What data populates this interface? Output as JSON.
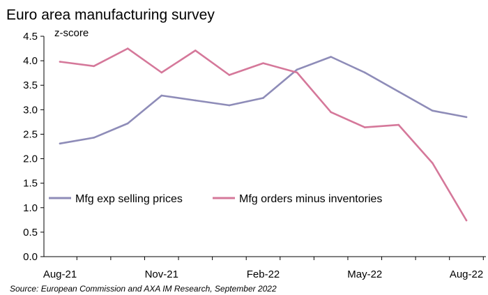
{
  "chart_data": {
    "type": "line",
    "title": "Euro area manufacturing survey",
    "unit_label": "z-score",
    "xlabel": "",
    "ylabel": "",
    "ylim": [
      0,
      4.5
    ],
    "y_ticks": [
      "0.0",
      "0.5",
      "1.0",
      "1.5",
      "2.0",
      "2.5",
      "3.0",
      "3.5",
      "4.0",
      "4.5"
    ],
    "x": [
      "Aug-21",
      "Sep-21",
      "Oct-21",
      "Nov-21",
      "Dec-21",
      "Jan-22",
      "Feb-22",
      "Mar-22",
      "Apr-22",
      "May-22",
      "Jun-22",
      "Jul-22",
      "Aug-22"
    ],
    "x_tick_labels": [
      "Aug-21",
      "Nov-21",
      "Feb-22",
      "May-22",
      "Aug-22"
    ],
    "series": [
      {
        "name": "Mfg exp selling prices",
        "color": "#8e8cb8",
        "values": [
          2.31,
          2.43,
          2.72,
          3.29,
          3.19,
          3.09,
          3.24,
          3.82,
          4.08,
          3.76,
          3.37,
          2.98,
          2.85
        ]
      },
      {
        "name": "Mfg orders minus inventories",
        "color": "#d5789a",
        "values": [
          3.98,
          3.89,
          4.25,
          3.76,
          4.21,
          3.71,
          3.95,
          3.76,
          2.95,
          2.64,
          2.69,
          1.91,
          0.74
        ]
      }
    ],
    "legend_position": "left-center",
    "grid": false,
    "source": "Source: European Commission and AXA IM Research, September 2022"
  }
}
